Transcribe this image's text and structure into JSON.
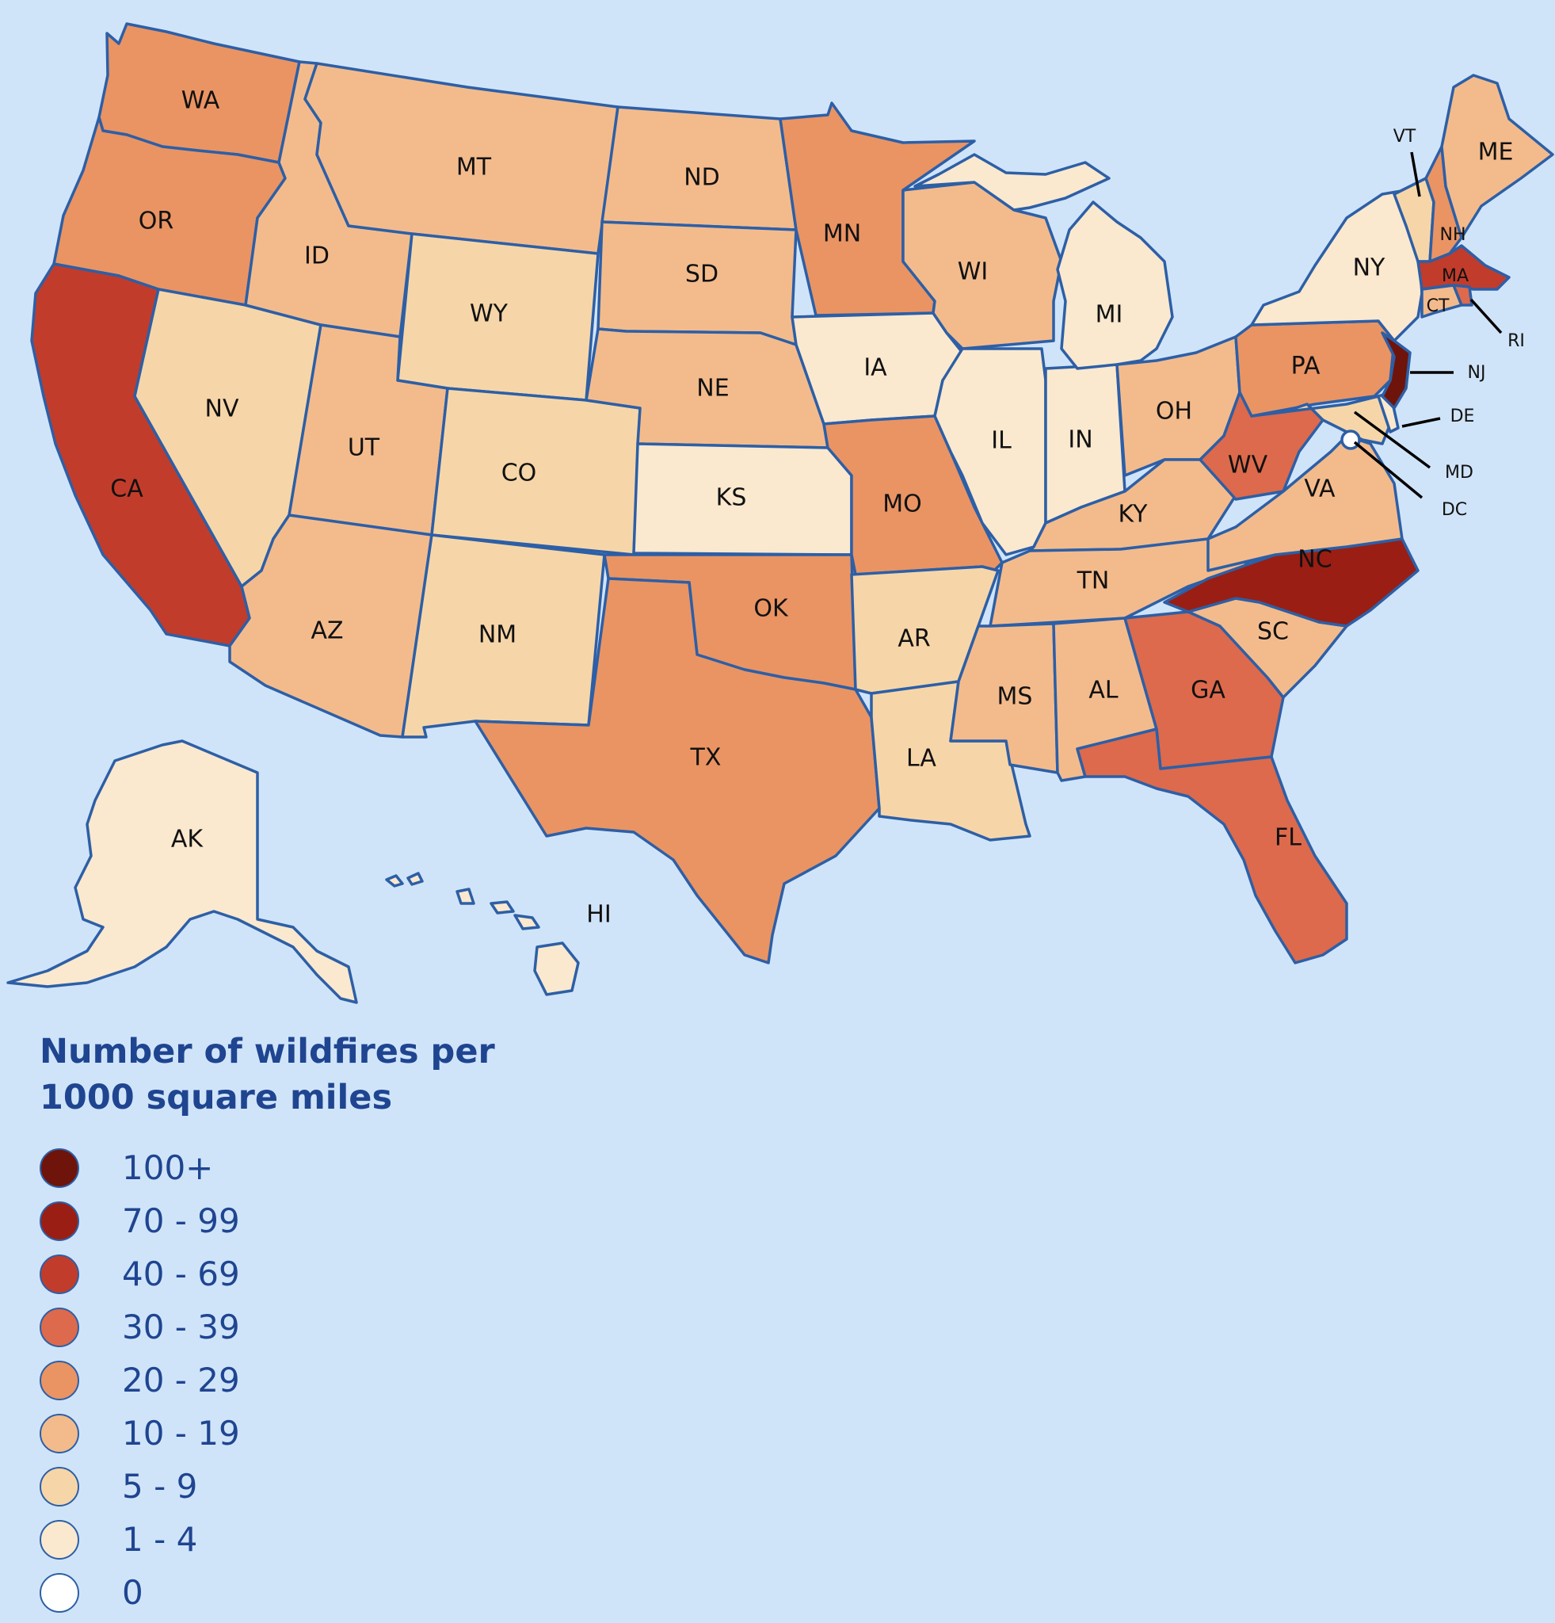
{
  "legend": {
    "title": "Number of wildfires per 1000 square miles",
    "bins": [
      {
        "label": "100+",
        "color": "#6e140b"
      },
      {
        "label": "70 - 99",
        "color": "#9a1e13"
      },
      {
        "label": "40 - 69",
        "color": "#c23c2b"
      },
      {
        "label": "30 - 39",
        "color": "#dd6a4c"
      },
      {
        "label": "20 - 29",
        "color": "#ea9463"
      },
      {
        "label": "10 - 19",
        "color": "#f3bb8c"
      },
      {
        "label": "5 - 9",
        "color": "#f6d6a8"
      },
      {
        "label": "1 - 4",
        "color": "#fae9cf"
      },
      {
        "label": "0",
        "color": "#ffffff"
      }
    ]
  },
  "states": {
    "WA": {
      "label": "WA",
      "bin": "20 - 29"
    },
    "OR": {
      "label": "OR",
      "bin": "20 - 29"
    },
    "CA": {
      "label": "CA",
      "bin": "40 - 69"
    },
    "NV": {
      "label": "NV",
      "bin": "5 - 9"
    },
    "ID": {
      "label": "ID",
      "bin": "10 - 19"
    },
    "MT": {
      "label": "MT",
      "bin": "10 - 19"
    },
    "WY": {
      "label": "WY",
      "bin": "5 - 9"
    },
    "UT": {
      "label": "UT",
      "bin": "10 - 19"
    },
    "AZ": {
      "label": "AZ",
      "bin": "10 - 19"
    },
    "CO": {
      "label": "CO",
      "bin": "5 - 9"
    },
    "NM": {
      "label": "NM",
      "bin": "5 - 9"
    },
    "ND": {
      "label": "ND",
      "bin": "10 - 19"
    },
    "SD": {
      "label": "SD",
      "bin": "10 - 19"
    },
    "NE": {
      "label": "NE",
      "bin": "10 - 19"
    },
    "KS": {
      "label": "KS",
      "bin": "1 - 4"
    },
    "OK": {
      "label": "OK",
      "bin": "20 - 29"
    },
    "TX": {
      "label": "TX",
      "bin": "20 - 29"
    },
    "MN": {
      "label": "MN",
      "bin": "20 - 29"
    },
    "IA": {
      "label": "IA",
      "bin": "1 - 4"
    },
    "MO": {
      "label": "MO",
      "bin": "20 - 29"
    },
    "AR": {
      "label": "AR",
      "bin": "5 - 9"
    },
    "LA": {
      "label": "LA",
      "bin": "5 - 9"
    },
    "WI": {
      "label": "WI",
      "bin": "10 - 19"
    },
    "IL": {
      "label": "IL",
      "bin": "1 - 4"
    },
    "MI": {
      "label": "MI",
      "bin": "1 - 4"
    },
    "IN": {
      "label": "IN",
      "bin": "1 - 4"
    },
    "OH": {
      "label": "OH",
      "bin": "10 - 19"
    },
    "KY": {
      "label": "KY",
      "bin": "10 - 19"
    },
    "TN": {
      "label": "TN",
      "bin": "10 - 19"
    },
    "MS": {
      "label": "MS",
      "bin": "10 - 19"
    },
    "AL": {
      "label": "AL",
      "bin": "10 - 19"
    },
    "GA": {
      "label": "GA",
      "bin": "30 - 39"
    },
    "FL": {
      "label": "FL",
      "bin": "30 - 39"
    },
    "SC": {
      "label": "SC",
      "bin": "10 - 19"
    },
    "NC": {
      "label": "NC",
      "bin": "70 - 99"
    },
    "VA": {
      "label": "VA",
      "bin": "10 - 19"
    },
    "WV": {
      "label": "WV",
      "bin": "30 - 39"
    },
    "PA": {
      "label": "PA",
      "bin": "20 - 29"
    },
    "NY": {
      "label": "NY",
      "bin": "1 - 4"
    },
    "VT": {
      "label": "VT",
      "bin": "5 - 9"
    },
    "NH": {
      "label": "NH",
      "bin": "20 - 29"
    },
    "ME": {
      "label": "ME",
      "bin": "10 - 19"
    },
    "MA": {
      "label": "MA",
      "bin": "40 - 69"
    },
    "CT": {
      "label": "CT",
      "bin": "10 - 19"
    },
    "RI": {
      "label": "RI",
      "bin": "30 - 39"
    },
    "NJ": {
      "label": "NJ",
      "bin": "100+"
    },
    "DE": {
      "label": "DE",
      "bin": "1 - 4"
    },
    "MD": {
      "label": "MD",
      "bin": "5 - 9"
    },
    "DC": {
      "label": "DC",
      "bin": "0"
    },
    "AK": {
      "label": "AK",
      "bin": "1 - 4"
    },
    "HI": {
      "label": "HI",
      "bin": "1 - 4"
    }
  }
}
